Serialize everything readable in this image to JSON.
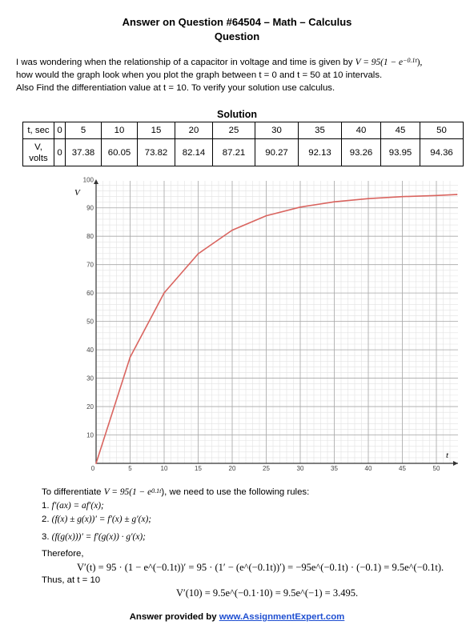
{
  "header": {
    "title": "Answer on Question #64504 – Math – Calculus",
    "subtitle": "Question"
  },
  "question": {
    "line1_pre": "I was wondering when the relationship of a capacitor in voltage and time is given by ",
    "line1_formula": "V = 95(1 − e",
    "line1_exp": "−0.1t",
    "line1_post": "),",
    "line2": "how would the graph look when you plot the graph between t = 0 and t = 50 at 10 intervals.",
    "line3": "Also Find the differentiation value at t = 10. To verify your solution use calculus."
  },
  "solution": {
    "heading": "Solution",
    "row1_label": "t, sec",
    "row2_label_a": "V,",
    "row2_label_b": "volts",
    "t_values": [
      "0",
      "5",
      "10",
      "15",
      "20",
      "25",
      "30",
      "35",
      "40",
      "45",
      "50"
    ],
    "v_values": [
      "0",
      "37.38",
      "60.05",
      "73.82",
      "82.14",
      "87.21",
      "90.27",
      "92.13",
      "93.26",
      "93.95",
      "94.36"
    ]
  },
  "chart_data": {
    "type": "line",
    "xlabel": "t",
    "ylabel": "V",
    "xlim": [
      0,
      52
    ],
    "ylim": [
      0,
      100
    ],
    "x_ticks": [
      "0",
      "5",
      "10",
      "15",
      "20",
      "25",
      "30",
      "35",
      "40",
      "45",
      "50"
    ],
    "y_ticks": [
      "10",
      "20",
      "30",
      "40",
      "50",
      "60",
      "70",
      "80",
      "90",
      "100"
    ],
    "grid": true,
    "line_color": "#d9645f",
    "series": [
      {
        "x": [
          0,
          5,
          10,
          15,
          20,
          25,
          30,
          35,
          40,
          45,
          50,
          53
        ],
        "y": [
          0,
          37.38,
          60.05,
          73.82,
          82.14,
          87.21,
          90.27,
          92.13,
          93.26,
          93.95,
          94.36,
          94.7
        ]
      }
    ]
  },
  "derivation": {
    "intro_pre": "To differentiate ",
    "intro_formula": "V = 95(1 − e",
    "intro_exp": "0.1t",
    "intro_post": "), we need to use the following rules:",
    "rule1_num": "1. ",
    "rule1": "f′(ax) = af′(x);",
    "rule2_num": "2. ",
    "rule2": "(f(x) ± g(x))′ = f′(x) ± g′(x);",
    "rule3_num": "3. ",
    "rule3": "(f(g(x)))′ = f′(g(x)) · g′(x);",
    "therefore": "Therefore,",
    "vprime_line": "V′(t) = 95 · (1 − e^(−0.1t))′ = 95 · (1′ − (e^(−0.1t))′) = −95e^(−0.1t) · (−0.1) = 9.5e^(−0.1t).",
    "thus": "Thus, at t  = 10",
    "result_line": "V′(10) = 9.5e^(−0.1·10) = 9.5e^(−1) = 3.495."
  },
  "footer": {
    "prefix": "Answer provided by ",
    "link_text": "www.AssignmentExpert.com"
  }
}
